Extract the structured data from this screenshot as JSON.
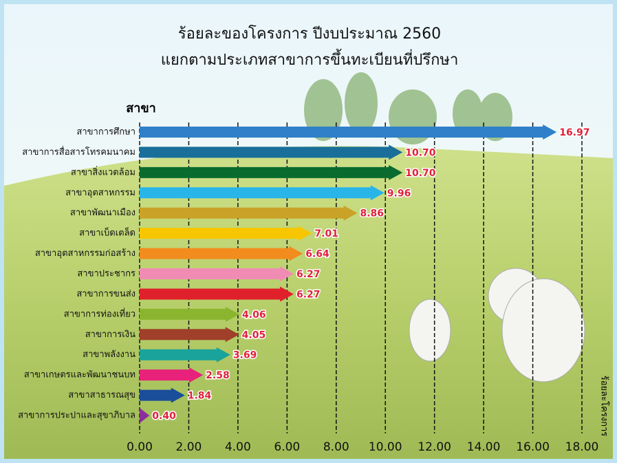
{
  "chart_data": {
    "type": "bar",
    "orientation": "horizontal",
    "title": "ร้อยละของโครงการ ปีงบประมาณ 2560",
    "subtitle": "แยกตามประเภทสาขาการขึ้นทะเบียนที่ปรึกษา",
    "y_label": "สาขา",
    "x_label": "ร้อยละโครงการ",
    "categories": [
      "สาขาการศึกษา",
      "สาขาการสื่อสารโทรคมนาคม",
      "สาขาสิ่งแวดล้อม",
      "สาขาอุตสาหกรรม",
      "สาขาพัฒนาเมือง",
      "สาขาเบ็ดเตล็ด",
      "สาขาอุตสาหกรรมก่อสร้าง",
      "สาขาประชากร",
      "สาขาการขนส่ง",
      "สาขาการท่องเที่ยว",
      "สาขาการเงิน",
      "สาขาพลังงาน",
      "สาขาเกษตรและพัฒนาชนบท",
      "สาขาสาธารณสุข",
      "สาขาการประปาและสุขาภิบาล"
    ],
    "values": [
      16.97,
      10.7,
      10.7,
      9.96,
      8.86,
      7.01,
      6.64,
      6.27,
      6.27,
      4.06,
      4.05,
      3.69,
      2.58,
      1.84,
      0.4
    ],
    "value_labels": [
      "16.97",
      "10.70",
      "10.70",
      "9.96",
      "8.86",
      "7.01",
      "6.64",
      "6.27",
      "6.27",
      "4.06",
      "4.05",
      "3.69",
      "2.58",
      "1.84",
      "0.40"
    ],
    "colors": [
      "#2f80c8",
      "#1a6f9a",
      "#0a6b2f",
      "#29b5e8",
      "#c9a227",
      "#f7c600",
      "#f28c1e",
      "#f08cb4",
      "#e0212b",
      "#8ab62f",
      "#a0402a",
      "#1aa39a",
      "#e8227a",
      "#1a4e9a",
      "#8b2f9a"
    ],
    "xlim": [
      0,
      18
    ],
    "xticks": [
      {
        "value": 0,
        "label": "0.00"
      },
      {
        "value": 2,
        "label": "2.00"
      },
      {
        "value": 4,
        "label": "4.00"
      },
      {
        "value": 6,
        "label": "6.00"
      },
      {
        "value": 8,
        "label": "8.00"
      },
      {
        "value": 10,
        "label": "10.00"
      },
      {
        "value": 12,
        "label": "12.00"
      },
      {
        "value": 14,
        "label": "14.00"
      },
      {
        "value": 16,
        "label": "16.00"
      },
      {
        "value": 18,
        "label": "18.00"
      }
    ],
    "grid": true
  }
}
